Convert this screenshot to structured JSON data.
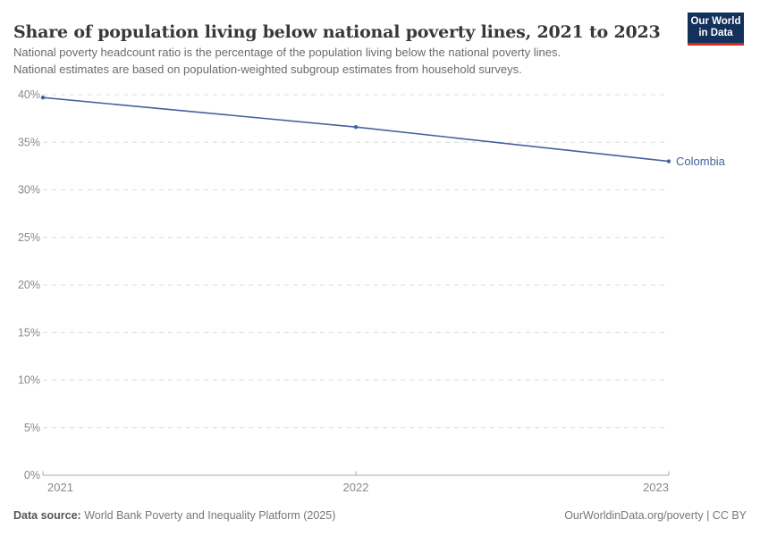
{
  "header": {
    "title": "Share of population living below national poverty lines, 2021 to 2023",
    "subtitle_line1": "National poverty headcount ratio is the percentage of the population living below the national poverty lines.",
    "subtitle_line2": "National estimates are based on population-weighted subgroup estimates from household surveys.",
    "logo": {
      "line1": "Our World",
      "line2": "in Data",
      "bg_color": "#14315c",
      "accent_color": "#d42b21"
    }
  },
  "chart_data": {
    "type": "line",
    "title": "Share of population living below national poverty lines, 2021 to 2023",
    "x": [
      "2021",
      "2022",
      "2023"
    ],
    "series": [
      {
        "name": "Colombia",
        "values": [
          39.7,
          36.6,
          33.0
        ],
        "color": "#44619d"
      }
    ],
    "ylim": [
      0,
      40
    ],
    "ytick_step": 5,
    "ytick_suffix": "%",
    "grid": "horizontal-dashed",
    "legend": "end-of-line-label",
    "axis_color": "#a8a8a8",
    "grid_color": "#dcdcdc",
    "tick_label_color": "#898989"
  },
  "footer": {
    "source_label": "Data source:",
    "source_text": " World Bank Poverty and Inequality Platform (2025)",
    "attribution": "OurWorldinData.org/poverty | CC BY"
  }
}
